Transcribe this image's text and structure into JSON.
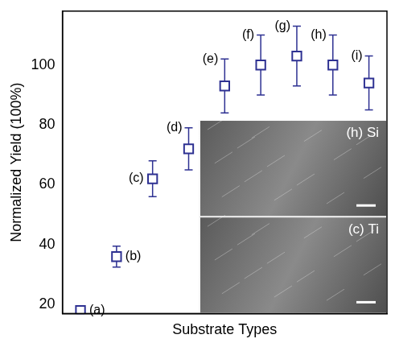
{
  "chart_data": {
    "type": "scatter",
    "categories": [
      null,
      null,
      null,
      null,
      null,
      null,
      null,
      null,
      null
    ],
    "point_labels": [
      "(a)",
      "(b)",
      "(c)",
      "(d)",
      "(e)",
      "(f)",
      "(g)",
      "(h)",
      "(i)"
    ],
    "values": [
      18,
      36,
      62,
      72,
      93,
      100,
      103,
      100,
      94
    ],
    "errors": [
      1,
      3.5,
      6,
      7,
      9,
      10,
      10,
      10,
      9
    ],
    "color": "#2e3192",
    "marker": "square",
    "x_label": "Substrate Types",
    "y_label": "Normalized Yield (100%)",
    "ylim": [
      17,
      118
    ],
    "yticks": [
      20,
      40,
      60,
      80,
      100
    ],
    "grid": false,
    "tick_labels": "y",
    "insets": [
      {
        "label": "(h) Si"
      },
      {
        "label": "(c) Ti"
      }
    ]
  }
}
